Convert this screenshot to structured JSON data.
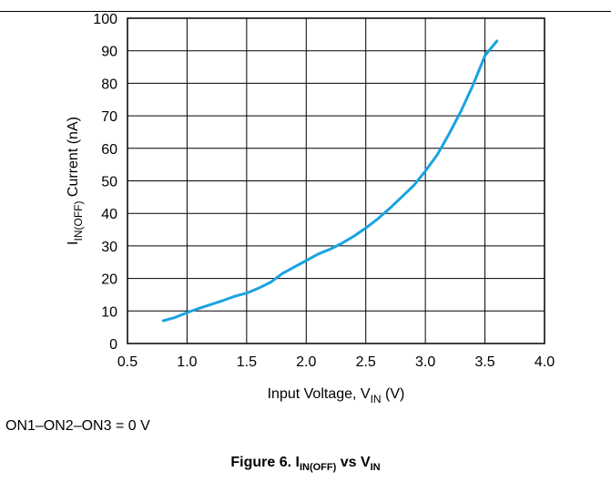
{
  "chart_data": {
    "type": "line",
    "xlabel": {
      "main": "Input Voltage, V",
      "sub": "IN",
      "unit": " (V)"
    },
    "ylabel": {
      "main": "I",
      "sub": "IN(OFF)",
      "rest": " Current (nA)"
    },
    "xlim": [
      0.5,
      4.0
    ],
    "ylim": [
      0,
      100
    ],
    "xticks": [
      "0.5",
      "1.0",
      "1.5",
      "2.0",
      "2.5",
      "3.0",
      "3.5",
      "4.0"
    ],
    "yticks": [
      "0",
      "10",
      "20",
      "30",
      "40",
      "50",
      "60",
      "70",
      "80",
      "90",
      "100"
    ],
    "grid": true,
    "line_color": "#1aa3e0",
    "series": [
      {
        "x": [
          0.8,
          0.9,
          1.0,
          1.1,
          1.2,
          1.3,
          1.4,
          1.5,
          1.6,
          1.7,
          1.8,
          1.9,
          2.0,
          2.1,
          2.2,
          2.3,
          2.4,
          2.5,
          2.6,
          2.7,
          2.8,
          2.9,
          3.0,
          3.1,
          3.2,
          3.3,
          3.4,
          3.5,
          3.6
        ],
        "y": [
          7.0,
          8.0,
          9.5,
          10.8,
          12.0,
          13.2,
          14.5,
          15.5,
          17.0,
          18.8,
          21.5,
          23.5,
          25.5,
          27.5,
          29.0,
          30.8,
          33.0,
          35.5,
          38.3,
          41.5,
          45.0,
          48.5,
          53.0,
          58.0,
          64.5,
          71.5,
          79.5,
          88.5,
          93.0
        ]
      }
    ]
  },
  "condition": "ON1–ON2–ON3 = 0 V",
  "caption": {
    "main": "Figure 6. I",
    "sub1": "IN(OFF)",
    "mid": " vs V",
    "sub2": "IN"
  }
}
